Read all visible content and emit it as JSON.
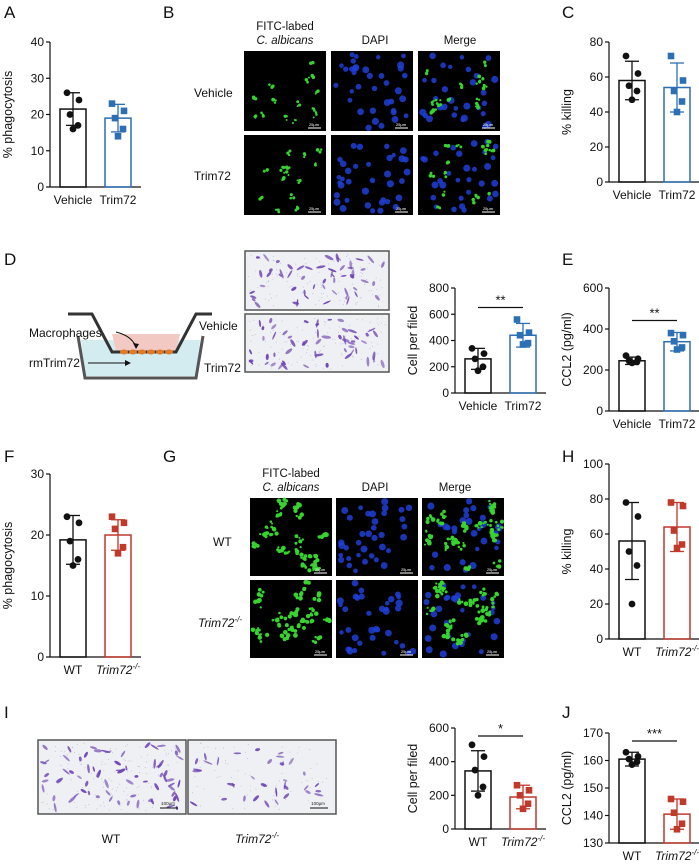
{
  "panels": {
    "A": "A",
    "B": "B",
    "C": "C",
    "D": "D",
    "E": "E",
    "F": "F",
    "G": "G",
    "H": "H",
    "I": "I",
    "J": "J"
  },
  "micro_headers": {
    "fitc_line1": "FITC-labed",
    "fitc_line2": "C. albicans",
    "dapi": "DAPI",
    "merge": "Merge"
  },
  "row_labels": {
    "vehicle": "Vehicle",
    "trim72": "Trim72",
    "wt": "WT",
    "ko_base": "Trim72",
    "ko_sup": "-/-"
  },
  "scale_bars": {
    "small": "25μm",
    "i_left": "100μm",
    "i_right": "100μm"
  },
  "schematic": {
    "macrophages": "Macrophages",
    "rmtrim72": "rmTrim72"
  },
  "colors": {
    "vehicle": "#111111",
    "trim72": "#2c6fb3",
    "ko": "#c0392b",
    "dapi": "#1f3fd6",
    "fitc": "#37d32f",
    "stain": "#6b3fb0",
    "insert_fill": "#f3c9c3",
    "media_fill": "#d2ecef"
  },
  "chart_data": [
    {
      "id": "A",
      "type": "bar",
      "ylabel": "% phagocytosis",
      "ylim": [
        0,
        40
      ],
      "yticks": [
        "0",
        "10",
        "20",
        "30",
        "40"
      ],
      "categories": [
        "Vehicle",
        "Trim72"
      ],
      "values": [
        21.5,
        19.0
      ],
      "errors": [
        4.5,
        3.8
      ],
      "points": [
        [
          26,
          24,
          20,
          17,
          16
        ],
        [
          23,
          21,
          19,
          16,
          14
        ]
      ],
      "significance": ""
    },
    {
      "id": "C",
      "type": "bar",
      "ylabel": "% killing",
      "ylim": [
        0,
        80
      ],
      "yticks": [
        "0",
        "20",
        "40",
        "60",
        "80"
      ],
      "categories": [
        "Vehicle",
        "Trim72"
      ],
      "values": [
        58,
        54
      ],
      "errors": [
        11,
        14
      ],
      "points": [
        [
          72,
          62,
          55,
          52,
          47
        ],
        [
          72,
          58,
          52,
          46,
          40
        ]
      ],
      "significance": ""
    },
    {
      "id": "D",
      "type": "bar",
      "ylabel": "Cell per filed",
      "ylim": [
        0,
        800
      ],
      "yticks": [
        "0",
        "200",
        "400",
        "600",
        "800"
      ],
      "categories": [
        "Vehicle",
        "Trim72"
      ],
      "values": [
        260,
        440
      ],
      "errors": [
        80,
        90
      ],
      "points": [
        [
          340,
          300,
          260,
          200,
          170
        ],
        [
          560,
          460,
          440,
          380,
          370
        ]
      ],
      "significance": "**"
    },
    {
      "id": "E",
      "type": "bar",
      "ylabel": "CCL2 (pg/ml)",
      "ylim": [
        0,
        600
      ],
      "yticks": [
        "0",
        "200",
        "400",
        "600"
      ],
      "categories": [
        "Vehicle",
        "Trim72"
      ],
      "values": [
        245,
        338
      ],
      "errors": [
        18,
        45
      ],
      "points": [
        [
          270,
          255,
          245,
          240,
          235
        ],
        [
          380,
          370,
          340,
          310,
          300
        ]
      ],
      "significance": "**"
    },
    {
      "id": "F",
      "type": "bar",
      "ylabel": "% phagocytosis",
      "ylim": [
        0,
        30
      ],
      "yticks": [
        "0",
        "10",
        "20",
        "30"
      ],
      "categories": [
        "WT",
        "Trim72-/-"
      ],
      "values": [
        19.2,
        20.0
      ],
      "errors": [
        4.0,
        2.5
      ],
      "points": [
        [
          23,
          22,
          19,
          16,
          15
        ],
        [
          23,
          22,
          21,
          18,
          17
        ]
      ],
      "significance": ""
    },
    {
      "id": "H",
      "type": "bar",
      "ylabel": "% killing",
      "ylim": [
        0,
        100
      ],
      "yticks": [
        "0",
        "20",
        "40",
        "60",
        "80",
        "100"
      ],
      "categories": [
        "WT",
        "Trim72-/-"
      ],
      "values": [
        56,
        64
      ],
      "errors": [
        22,
        14
      ],
      "points": [
        [
          78,
          70,
          50,
          42,
          20
        ],
        [
          78,
          76,
          62,
          54,
          52
        ]
      ],
      "significance": ""
    },
    {
      "id": "I",
      "type": "bar",
      "ylabel": "Cell per filed",
      "ylim": [
        0,
        600
      ],
      "yticks": [
        "0",
        "200",
        "400",
        "600"
      ],
      "categories": [
        "WT",
        "Trim72-/-"
      ],
      "values": [
        345,
        190
      ],
      "errors": [
        120,
        70
      ],
      "points": [
        [
          500,
          430,
          350,
          250,
          200
        ],
        [
          260,
          230,
          200,
          150,
          120
        ]
      ],
      "significance": "*"
    },
    {
      "id": "J",
      "type": "bar",
      "ylabel": "CCL2 (pg/ml)",
      "ylim": [
        130,
        170
      ],
      "yticks": [
        "130",
        "140",
        "150",
        "160",
        "170"
      ],
      "categories": [
        "WT",
        "Trim72-/-"
      ],
      "values": [
        160.5,
        140.5
      ],
      "errors": [
        2.5,
        5.5
      ],
      "points": [
        [
          163,
          161.5,
          160.5,
          159.5,
          158.5
        ],
        [
          146,
          145,
          141,
          137,
          135
        ]
      ],
      "significance": "***"
    }
  ]
}
